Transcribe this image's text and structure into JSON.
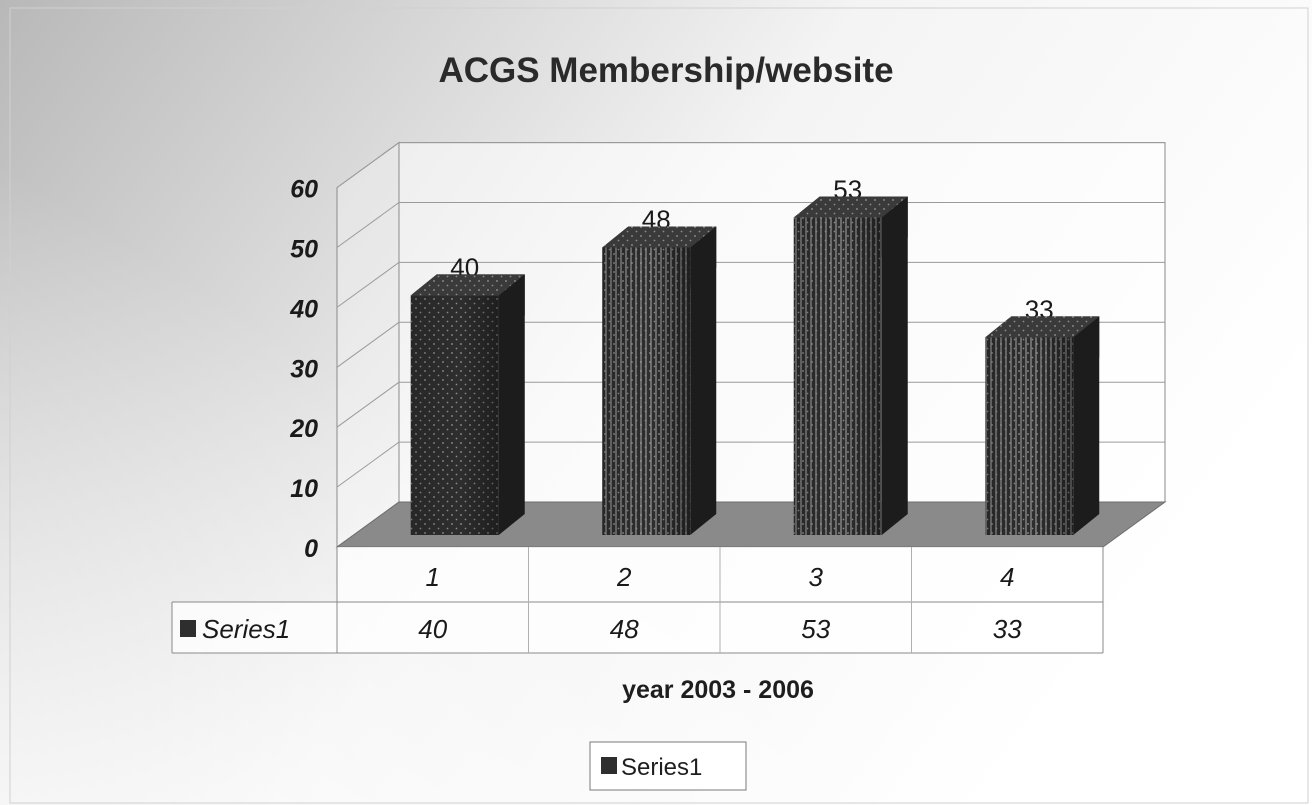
{
  "chart_data": {
    "type": "bar",
    "title": "ACGS Membership/website",
    "xlabel": "year 2003 - 2006",
    "ylabel": "",
    "categories": [
      "1",
      "2",
      "3",
      "4"
    ],
    "series": [
      {
        "name": "Series1",
        "values": [
          40,
          48,
          53,
          33
        ]
      }
    ],
    "ylim": [
      0,
      60
    ],
    "yticks": [
      0,
      10,
      20,
      30,
      40,
      50,
      60
    ],
    "grid": true,
    "three_d": true,
    "data_table": true,
    "legend": {
      "position": "bottom",
      "entries": [
        "Series1"
      ]
    },
    "data_labels": [
      "40",
      "48",
      "53",
      "33"
    ],
    "colors": {
      "bar": "#2e2e2e",
      "floor": "#8a8a8a",
      "grid": "#9a9a9a",
      "background_dark": "#c4c4c4",
      "background_light": "#ffffff"
    }
  }
}
